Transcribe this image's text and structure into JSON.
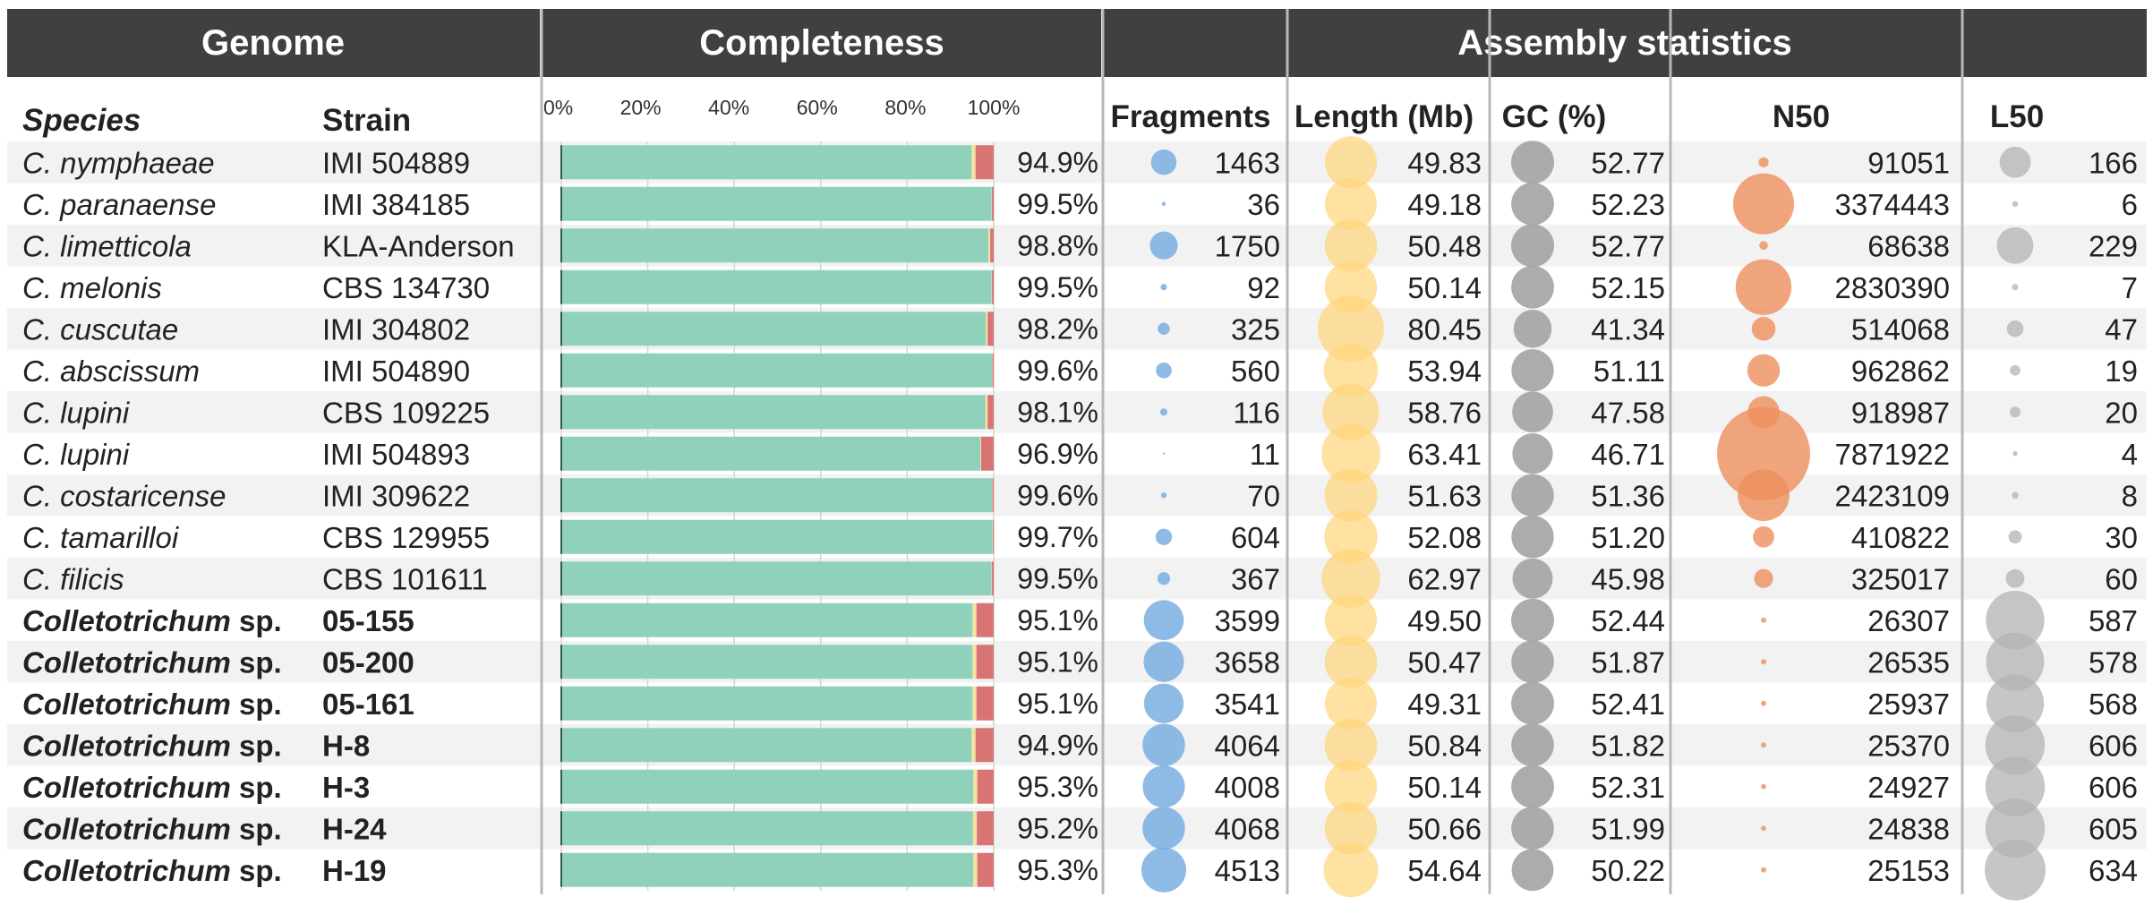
{
  "headers": {
    "genome": "Genome",
    "completeness": "Completeness",
    "assembly": "Assembly statistics"
  },
  "columns": {
    "species": "Species",
    "strain": "Strain",
    "fragments": "Fragments",
    "length": "Length (Mb)",
    "gc": "GC (%)",
    "n50": "N50",
    "l50": "L50"
  },
  "chart_data": {
    "type": "bar",
    "title": "Completeness",
    "xlim": [
      0,
      100
    ],
    "ticks": [
      "0%",
      "20%",
      "40%",
      "60%",
      "80%",
      "100%"
    ],
    "series_colors": {
      "complete": "#8fd1bb",
      "fragmented": "#f2e3a0",
      "missing": "#d97474"
    },
    "bubble_colors": {
      "fragments": "#7aaee2",
      "length": "#ffd57a",
      "gc": "#a3a3a3",
      "n50": "#ee8f5c",
      "l50": "#b3b3b3"
    },
    "rows": [
      {
        "species_name": "C. nymphaeae",
        "genus": "",
        "sp": "",
        "strain": "IMI 504889",
        "bold": false,
        "complete": 94.9,
        "fragmented": 0.9,
        "missing": 4.2,
        "pct_label": "94.9%",
        "fragments": 1463,
        "length": 49.83,
        "length_label": "49.83",
        "gc": 52.77,
        "gc_label": "52.77",
        "n50": 91051,
        "l50": 166
      },
      {
        "species_name": "C. paranaense",
        "genus": "",
        "sp": "",
        "strain": "IMI 384185",
        "bold": false,
        "complete": 99.5,
        "fragmented": 0.1,
        "missing": 0.4,
        "pct_label": "99.5%",
        "fragments": 36,
        "length": 49.18,
        "length_label": "49.18",
        "gc": 52.23,
        "gc_label": "52.23",
        "n50": 3374443,
        "l50": 6
      },
      {
        "species_name": "C. limetticola",
        "genus": "",
        "sp": "",
        "strain": "KLA-Anderson",
        "bold": false,
        "complete": 98.8,
        "fragmented": 0.4,
        "missing": 0.8,
        "pct_label": "98.8%",
        "fragments": 1750,
        "length": 50.48,
        "length_label": "50.48",
        "gc": 52.77,
        "gc_label": "52.77",
        "n50": 68638,
        "l50": 229
      },
      {
        "species_name": "C. melonis",
        "genus": "",
        "sp": "",
        "strain": "CBS 134730",
        "bold": false,
        "complete": 99.5,
        "fragmented": 0.1,
        "missing": 0.4,
        "pct_label": "99.5%",
        "fragments": 92,
        "length": 50.14,
        "length_label": "50.14",
        "gc": 52.15,
        "gc_label": "52.15",
        "n50": 2830390,
        "l50": 7
      },
      {
        "species_name": "C. cuscutae",
        "genus": "",
        "sp": "",
        "strain": "IMI 304802",
        "bold": false,
        "complete": 98.2,
        "fragmented": 0.4,
        "missing": 1.4,
        "pct_label": "98.2%",
        "fragments": 325,
        "length": 80.45,
        "length_label": "80.45",
        "gc": 41.34,
        "gc_label": "41.34",
        "n50": 514068,
        "l50": 47
      },
      {
        "species_name": "C. abscissum",
        "genus": "",
        "sp": "",
        "strain": "IMI 504890",
        "bold": false,
        "complete": 99.6,
        "fragmented": 0.1,
        "missing": 0.3,
        "pct_label": "99.6%",
        "fragments": 560,
        "length": 53.94,
        "length_label": "53.94",
        "gc": 51.11,
        "gc_label": "51.11",
        "n50": 962862,
        "l50": 19
      },
      {
        "species_name": "C. lupini",
        "genus": "",
        "sp": "",
        "strain": "CBS 109225",
        "bold": false,
        "complete": 98.1,
        "fragmented": 0.5,
        "missing": 1.4,
        "pct_label": "98.1%",
        "fragments": 116,
        "length": 58.76,
        "length_label": "58.76",
        "gc": 47.58,
        "gc_label": "47.58",
        "n50": 918987,
        "l50": 20
      },
      {
        "species_name": "C. lupini",
        "genus": "",
        "sp": "",
        "strain": "IMI 504893",
        "bold": false,
        "complete": 96.9,
        "fragmented": 0.2,
        "missing": 2.9,
        "pct_label": "96.9%",
        "fragments": 11,
        "length": 63.41,
        "length_label": "63.41",
        "gc": 46.71,
        "gc_label": "46.71",
        "n50": 7871922,
        "l50": 4
      },
      {
        "species_name": "C. costaricense",
        "genus": "",
        "sp": "",
        "strain": "IMI 309622",
        "bold": false,
        "complete": 99.6,
        "fragmented": 0.1,
        "missing": 0.3,
        "pct_label": "99.6%",
        "fragments": 70,
        "length": 51.63,
        "length_label": "51.63",
        "gc": 51.36,
        "gc_label": "51.36",
        "n50": 2423109,
        "l50": 8
      },
      {
        "species_name": "C. tamarilloi",
        "genus": "",
        "sp": "",
        "strain": "CBS 129955",
        "bold": false,
        "complete": 99.7,
        "fragmented": 0.1,
        "missing": 0.2,
        "pct_label": "99.7%",
        "fragments": 604,
        "length": 52.08,
        "length_label": "52.08",
        "gc": 51.2,
        "gc_label": "51.20",
        "n50": 410822,
        "l50": 30
      },
      {
        "species_name": "C. filicis",
        "genus": "",
        "sp": "",
        "strain": "CBS 101611",
        "bold": false,
        "complete": 99.5,
        "fragmented": 0.1,
        "missing": 0.4,
        "pct_label": "99.5%",
        "fragments": 367,
        "length": 62.97,
        "length_label": "62.97",
        "gc": 45.98,
        "gc_label": "45.98",
        "n50": 325017,
        "l50": 60
      },
      {
        "species_name": "",
        "genus": "Colletotrichum",
        "sp": " sp.",
        "strain": "05-155",
        "bold": true,
        "complete": 95.1,
        "fragmented": 0.9,
        "missing": 4.0,
        "pct_label": "95.1%",
        "fragments": 3599,
        "length": 49.5,
        "length_label": "49.50",
        "gc": 52.44,
        "gc_label": "52.44",
        "n50": 26307,
        "l50": 587
      },
      {
        "species_name": "",
        "genus": "Colletotrichum",
        "sp": " sp.",
        "strain": "05-200",
        "bold": true,
        "complete": 95.1,
        "fragmented": 0.9,
        "missing": 4.0,
        "pct_label": "95.1%",
        "fragments": 3658,
        "length": 50.47,
        "length_label": "50.47",
        "gc": 51.87,
        "gc_label": "51.87",
        "n50": 26535,
        "l50": 578
      },
      {
        "species_name": "",
        "genus": "Colletotrichum",
        "sp": " sp.",
        "strain": "05-161",
        "bold": true,
        "complete": 95.1,
        "fragmented": 0.9,
        "missing": 4.0,
        "pct_label": "95.1%",
        "fragments": 3541,
        "length": 49.31,
        "length_label": "49.31",
        "gc": 52.41,
        "gc_label": "52.41",
        "n50": 25937,
        "l50": 568
      },
      {
        "species_name": "",
        "genus": "Colletotrichum",
        "sp": " sp.",
        "strain": "H-8",
        "bold": true,
        "complete": 94.9,
        "fragmented": 0.9,
        "missing": 4.2,
        "pct_label": "94.9%",
        "fragments": 4064,
        "length": 50.84,
        "length_label": "50.84",
        "gc": 51.82,
        "gc_label": "51.82",
        "n50": 25370,
        "l50": 606
      },
      {
        "species_name": "",
        "genus": "Colletotrichum",
        "sp": " sp.",
        "strain": "H-3",
        "bold": true,
        "complete": 95.3,
        "fragmented": 0.9,
        "missing": 3.8,
        "pct_label": "95.3%",
        "fragments": 4008,
        "length": 50.14,
        "length_label": "50.14",
        "gc": 52.31,
        "gc_label": "52.31",
        "n50": 24927,
        "l50": 606
      },
      {
        "species_name": "",
        "genus": "Colletotrichum",
        "sp": " sp.",
        "strain": "H-24",
        "bold": true,
        "complete": 95.2,
        "fragmented": 0.9,
        "missing": 3.9,
        "pct_label": "95.2%",
        "fragments": 4068,
        "length": 50.66,
        "length_label": "50.66",
        "gc": 51.99,
        "gc_label": "51.99",
        "n50": 24838,
        "l50": 605
      },
      {
        "species_name": "",
        "genus": "Colletotrichum",
        "sp": " sp.",
        "strain": "H-19",
        "bold": true,
        "complete": 95.3,
        "fragmented": 0.9,
        "missing": 3.8,
        "pct_label": "95.3%",
        "fragments": 4513,
        "length": 54.64,
        "length_label": "54.64",
        "gc": 50.22,
        "gc_label": "50.22",
        "n50": 25153,
        "l50": 634
      }
    ]
  }
}
